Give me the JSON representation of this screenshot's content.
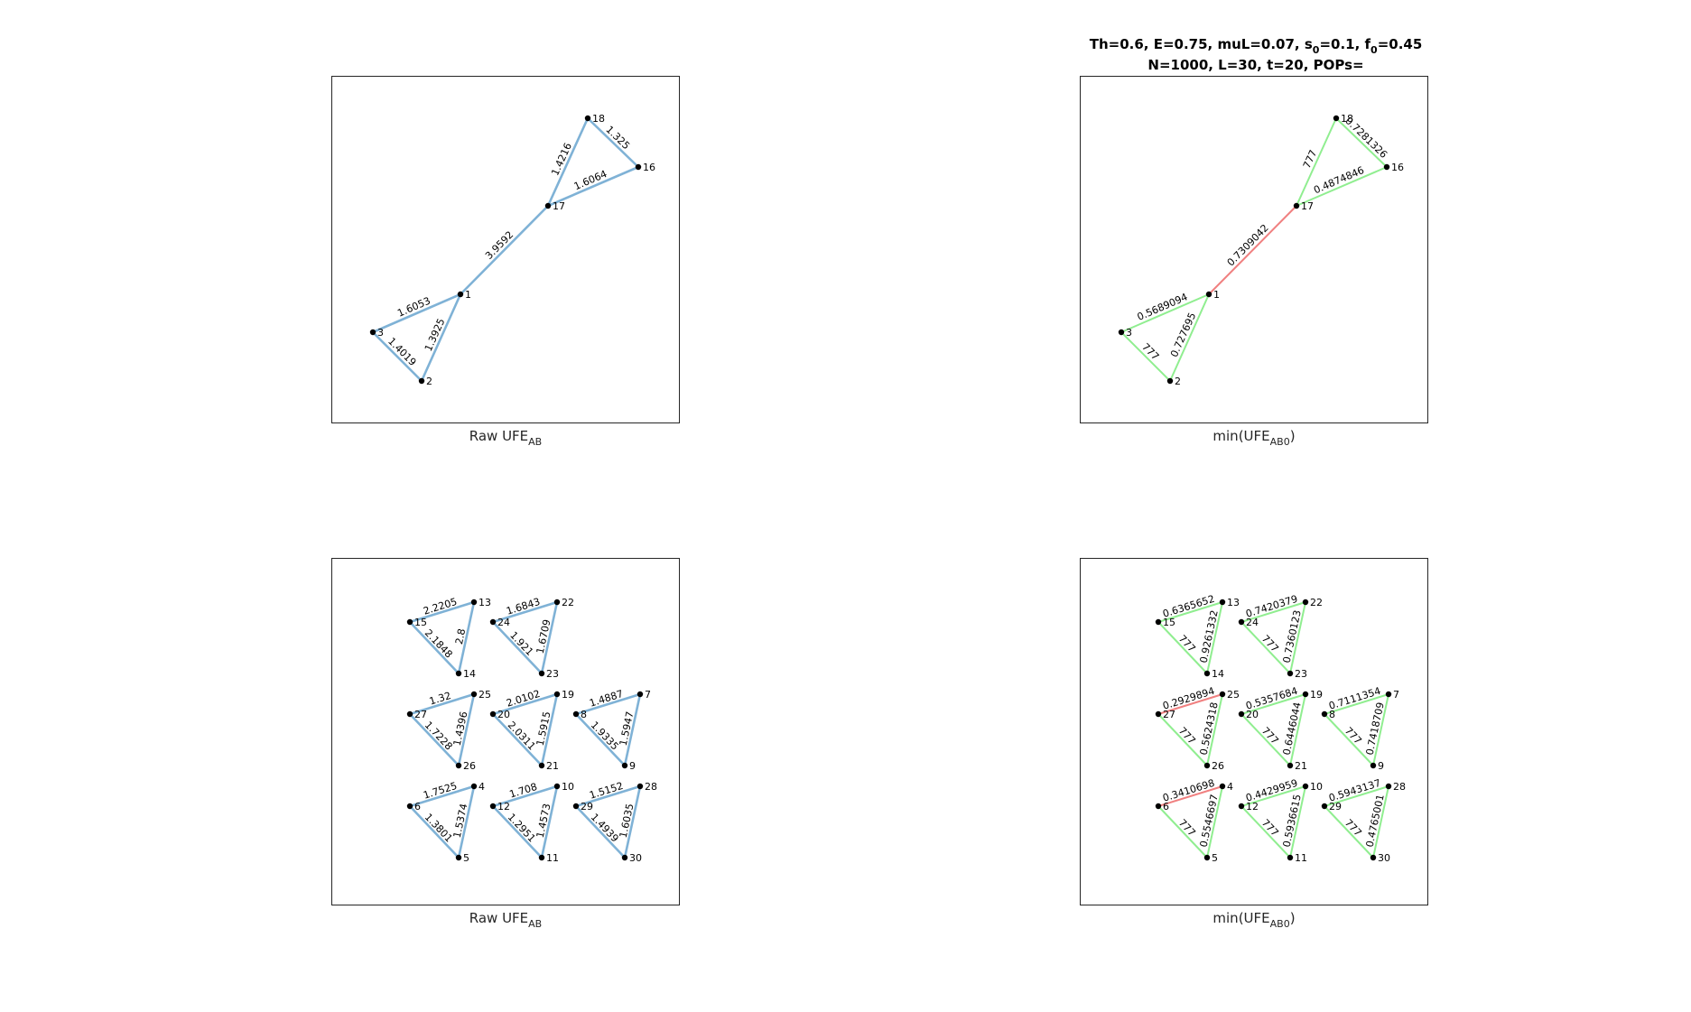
{
  "figure_title": {
    "line1": {
      "th": "Th=0.6",
      "e": "E=0.75",
      "mul": "muL=0.07",
      "s_base": "s",
      "s_sub": "0",
      "s_val": "=0.1",
      "f_base": "f",
      "f_sub": "0",
      "f_val": "=0.45"
    },
    "line2": "N=1000, L=30, t=20,  POPs="
  },
  "captions": {
    "raw": {
      "base": "Raw UFE",
      "sub": "AB"
    },
    "min": {
      "prefix": "min(UFE",
      "sub": "AB0",
      "suffix": ")"
    }
  },
  "colors": {
    "raw_edge": "#7fb2d6",
    "green_edge": "#90ee90",
    "red_edge": "#f08080"
  },
  "panels": [
    {
      "id": "top-left",
      "caption": "raw",
      "nodes": [
        {
          "label": "18"
        },
        {
          "label": "16"
        },
        {
          "label": "17"
        },
        {
          "label": "1"
        },
        {
          "label": "3"
        },
        {
          "label": "2"
        }
      ],
      "edges": [
        {
          "from": "18",
          "to": "16",
          "label": "1.325",
          "color": "raw"
        },
        {
          "from": "17",
          "to": "18",
          "label": "1.4216",
          "color": "raw"
        },
        {
          "from": "17",
          "to": "16",
          "label": "1.6064",
          "color": "raw"
        },
        {
          "from": "1",
          "to": "17",
          "label": "3.9592",
          "color": "raw"
        },
        {
          "from": "3",
          "to": "1",
          "label": "1.6053",
          "color": "raw"
        },
        {
          "from": "2",
          "to": "1",
          "label": "1.3925",
          "color": "raw"
        },
        {
          "from": "3",
          "to": "2",
          "label": "1.4019",
          "color": "raw"
        }
      ]
    },
    {
      "id": "top-right",
      "caption": "min",
      "nodes": [
        {
          "label": "18"
        },
        {
          "label": "16"
        },
        {
          "label": "17"
        },
        {
          "label": "1"
        },
        {
          "label": "3"
        },
        {
          "label": "2"
        }
      ],
      "edges": [
        {
          "from": "18",
          "to": "16",
          "label": "0.7281326",
          "color": "green"
        },
        {
          "from": "17",
          "to": "18",
          "label": "777",
          "color": "green"
        },
        {
          "from": "17",
          "to": "16",
          "label": "0.4874846",
          "color": "green"
        },
        {
          "from": "1",
          "to": "17",
          "label": "0.7309042",
          "color": "red"
        },
        {
          "from": "3",
          "to": "1",
          "label": "0.5689094",
          "color": "green"
        },
        {
          "from": "2",
          "to": "1",
          "label": "0.727695",
          "color": "green"
        },
        {
          "from": "3",
          "to": "2",
          "label": "777",
          "color": "green"
        }
      ]
    },
    {
      "id": "bottom-left",
      "caption": "raw",
      "triangles": [
        {
          "left": "15",
          "top": "13",
          "bottom": "14",
          "top_edge": "2.2205",
          "right_edge": "2.8",
          "left_edge": "2.1848",
          "top_color": "raw"
        },
        {
          "left": "24",
          "top": "22",
          "bottom": "23",
          "top_edge": "1.6843",
          "right_edge": "1.6709",
          "left_edge": "1.921",
          "top_color": "raw"
        },
        {
          "left": "27",
          "top": "25",
          "bottom": "26",
          "top_edge": "1.32",
          "right_edge": "1.4396",
          "left_edge": "1.7228",
          "top_color": "raw"
        },
        {
          "left": "20",
          "top": "19",
          "bottom": "21",
          "top_edge": "2.0102",
          "right_edge": "1.5915",
          "left_edge": "2.0311",
          "top_color": "raw"
        },
        {
          "left": "8",
          "top": "7",
          "bottom": "9",
          "top_edge": "1.4887",
          "right_edge": "1.5947",
          "left_edge": "1.9335",
          "top_color": "raw"
        },
        {
          "left": "6",
          "top": "4",
          "bottom": "5",
          "top_edge": "1.7525",
          "right_edge": "1.5374",
          "left_edge": "1.3801",
          "top_color": "raw"
        },
        {
          "left": "12",
          "top": "10",
          "bottom": "11",
          "top_edge": "1.708",
          "right_edge": "1.4573",
          "left_edge": "1.2951",
          "top_color": "raw"
        },
        {
          "left": "29",
          "top": "28",
          "bottom": "30",
          "top_edge": "1.5152",
          "right_edge": "1.6035",
          "left_edge": "1.4939",
          "top_color": "raw"
        }
      ]
    },
    {
      "id": "bottom-right",
      "caption": "min",
      "triangles": [
        {
          "left": "15",
          "top": "13",
          "bottom": "14",
          "top_edge": "0.6365652",
          "right_edge": "0.9261332",
          "left_edge": "777",
          "top_color": "green"
        },
        {
          "left": "24",
          "top": "22",
          "bottom": "23",
          "top_edge": "0.7420379",
          "right_edge": "0.7360123",
          "left_edge": "777",
          "top_color": "green"
        },
        {
          "left": "27",
          "top": "25",
          "bottom": "26",
          "top_edge": "0.2929894",
          "right_edge": "0.5624318",
          "left_edge": "777",
          "top_color": "red"
        },
        {
          "left": "20",
          "top": "19",
          "bottom": "21",
          "top_edge": "0.5357684",
          "right_edge": "0.6446044",
          "left_edge": "777",
          "top_color": "green"
        },
        {
          "left": "8",
          "top": "7",
          "bottom": "9",
          "top_edge": "0.7111354",
          "right_edge": "0.7418709",
          "left_edge": "777",
          "top_color": "green"
        },
        {
          "left": "6",
          "top": "4",
          "bottom": "5",
          "top_edge": "0.3410698",
          "right_edge": "0.5546697",
          "left_edge": "777",
          "top_color": "red"
        },
        {
          "left": "12",
          "top": "10",
          "bottom": "11",
          "top_edge": "0.4429959",
          "right_edge": "0.5936615",
          "left_edge": "777",
          "top_color": "green"
        },
        {
          "left": "29",
          "top": "28",
          "bottom": "30",
          "top_edge": "0.5943137",
          "right_edge": "0.4765001",
          "left_edge": "777",
          "top_color": "green"
        }
      ]
    }
  ]
}
